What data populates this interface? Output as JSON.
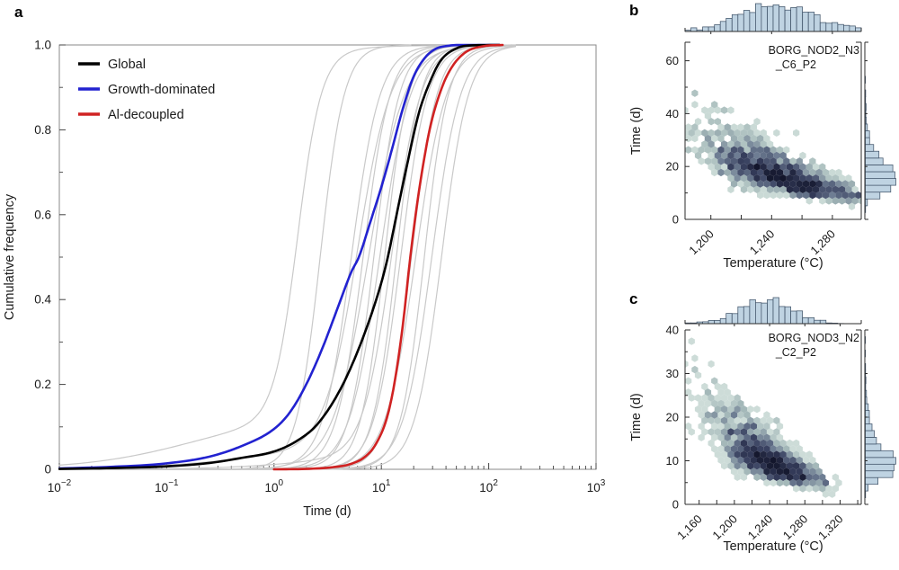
{
  "figure": {
    "letters": [
      "a",
      "b",
      "c"
    ],
    "background": "#ffffff"
  },
  "chart_data": [
    {
      "panel": "a",
      "type": "line",
      "xlabel": "Time (d)",
      "ylabel": "Cumulative frequency",
      "x_scale": "log10",
      "xlim_log10": [
        -2,
        3
      ],
      "ylim": [
        0,
        1
      ],
      "x_tick_exponents": [
        "−2",
        "−1",
        "0",
        "1",
        "2",
        "3"
      ],
      "y_ticks": [
        {
          "v": 0.0,
          "label": "0"
        },
        {
          "v": 0.2,
          "label": "0.2"
        },
        {
          "v": 0.4,
          "label": "0.4"
        },
        {
          "v": 0.6,
          "label": "0.6"
        },
        {
          "v": 0.8,
          "label": "0.8"
        },
        {
          "v": 1.0,
          "label": "1.0"
        }
      ],
      "legend": [
        {
          "label": "Global",
          "color": "#000000"
        },
        {
          "label": "Growth-dominated",
          "color": "#2222d0"
        },
        {
          "label": "Al-decoupled",
          "color": "#d02222"
        }
      ],
      "series": [
        {
          "name": "Growth-dominated",
          "color": "#2222d0",
          "width": 2.6,
          "points_log10_F": [
            [
              -2,
              0.002
            ],
            [
              -1.5,
              0.006
            ],
            [
              -1,
              0.014
            ],
            [
              -0.6,
              0.03
            ],
            [
              -0.3,
              0.055
            ],
            [
              0,
              0.095
            ],
            [
              0.15,
              0.135
            ],
            [
              0.3,
              0.2
            ],
            [
              0.45,
              0.285
            ],
            [
              0.6,
              0.385
            ],
            [
              0.72,
              0.465
            ],
            [
              0.79,
              0.5
            ],
            [
              0.9,
              0.585
            ],
            [
              1,
              0.665
            ],
            [
              1.1,
              0.755
            ],
            [
              1.2,
              0.85
            ],
            [
              1.3,
              0.925
            ],
            [
              1.4,
              0.968
            ],
            [
              1.5,
              0.99
            ],
            [
              1.62,
              0.998
            ],
            [
              1.75,
              1
            ],
            [
              2.1,
              1
            ]
          ]
        },
        {
          "name": "Global",
          "color": "#000000",
          "width": 2.6,
          "points_log10_F": [
            [
              -2,
              0.001
            ],
            [
              -1.5,
              0.003
            ],
            [
              -1,
              0.007
            ],
            [
              -0.6,
              0.015
            ],
            [
              -0.3,
              0.027
            ],
            [
              0,
              0.042
            ],
            [
              0.2,
              0.065
            ],
            [
              0.4,
              0.105
            ],
            [
              0.6,
              0.18
            ],
            [
              0.75,
              0.26
            ],
            [
              0.9,
              0.36
            ],
            [
              1,
              0.44
            ],
            [
              1.06,
              0.5
            ],
            [
              1.15,
              0.61
            ],
            [
              1.25,
              0.73
            ],
            [
              1.35,
              0.84
            ],
            [
              1.44,
              0.905
            ],
            [
              1.55,
              0.962
            ],
            [
              1.7,
              0.992
            ],
            [
              1.85,
              0.999
            ],
            [
              2.1,
              1
            ]
          ]
        },
        {
          "name": "Al-decoupled",
          "color": "#d02222",
          "width": 2.6,
          "points_log10_F": [
            [
              0,
              0
            ],
            [
              0.3,
              0.001
            ],
            [
              0.55,
              0.005
            ],
            [
              0.72,
              0.013
            ],
            [
              0.85,
              0.03
            ],
            [
              0.95,
              0.06
            ],
            [
              1.05,
              0.12
            ],
            [
              1.12,
              0.2
            ],
            [
              1.2,
              0.34
            ],
            [
              1.27,
              0.5
            ],
            [
              1.35,
              0.655
            ],
            [
              1.45,
              0.8
            ],
            [
              1.55,
              0.89
            ],
            [
              1.65,
              0.945
            ],
            [
              1.78,
              0.982
            ],
            [
              1.95,
              0.997
            ],
            [
              2.13,
              1
            ]
          ]
        }
      ],
      "background_curves": {
        "color": "#c9c9c9",
        "width": 1.2,
        "logistic_params": [
          {
            "mu": 0.22,
            "k": 9.0,
            "tail_w": 0.13,
            "tail_mu": -0.75,
            "tail_k": 2.0
          },
          {
            "mu": 0.43,
            "k": 9.0,
            "tail_w": 0.0,
            "tail_mu": 0,
            "tail_k": 1
          },
          {
            "mu": 0.72,
            "k": 7.5,
            "tail_w": 0.0,
            "tail_mu": 0,
            "tail_k": 1
          },
          {
            "mu": 0.78,
            "k": 6.5,
            "tail_w": 0.05,
            "tail_mu": -0.3,
            "tail_k": 2.0
          },
          {
            "mu": 0.83,
            "k": 8.0,
            "tail_w": 0.0,
            "tail_mu": 0,
            "tail_k": 1
          },
          {
            "mu": 0.88,
            "k": 6.0,
            "tail_w": 0.0,
            "tail_mu": 0,
            "tail_k": 1
          },
          {
            "mu": 0.93,
            "k": 8.5,
            "tail_w": 0.0,
            "tail_mu": 0,
            "tail_k": 1
          },
          {
            "mu": 0.985,
            "k": 7.0,
            "tail_w": 0.0,
            "tail_mu": 0,
            "tail_k": 1
          },
          {
            "mu": 1.03,
            "k": 9.0,
            "tail_w": 0.0,
            "tail_mu": 0,
            "tail_k": 1
          },
          {
            "mu": 1.1,
            "k": 7.5,
            "tail_w": 0.03,
            "tail_mu": 0.2,
            "tail_k": 2.5
          },
          {
            "mu": 1.14,
            "k": 9.0,
            "tail_w": 0.0,
            "tail_mu": 0,
            "tail_k": 1
          },
          {
            "mu": 1.18,
            "k": 8.0,
            "tail_w": 0.0,
            "tail_mu": 0,
            "tail_k": 1
          },
          {
            "mu": 1.28,
            "k": 8.5,
            "tail_w": 0.0,
            "tail_mu": 0,
            "tail_k": 1
          },
          {
            "mu": 1.32,
            "k": 7.0,
            "tail_w": 0.0,
            "tail_mu": 0,
            "tail_k": 1
          },
          {
            "mu": 1.4,
            "k": 9.0,
            "tail_w": 0.0,
            "tail_mu": 0,
            "tail_k": 1
          },
          {
            "mu": 1.47,
            "k": 7.5,
            "tail_w": 0.0,
            "tail_mu": 0,
            "tail_k": 1
          },
          {
            "mu": 1.56,
            "k": 8.0,
            "tail_w": 0.0,
            "tail_mu": 0,
            "tail_k": 1
          }
        ]
      },
      "style": {
        "spine_color": "#8a8a8a",
        "tick_color": "#444444"
      }
    },
    {
      "panel": "b",
      "type": "hexbin_with_marginals",
      "sample_label_lines": [
        "BORG_NOD2_N3",
        "_C6_P2"
      ],
      "xlabel": "Temperature (°C)",
      "ylabel": "Time (d)",
      "xlim": [
        1183,
        1299
      ],
      "ylim": [
        0,
        67
      ],
      "x_major_ticks": [
        {
          "v": 1200,
          "label": "1,200"
        },
        {
          "v": 1240,
          "label": "1,240"
        },
        {
          "v": 1280,
          "label": "1,280"
        }
      ],
      "x_minor_step": 20,
      "y_major_ticks": [
        {
          "v": 0,
          "label": "0"
        },
        {
          "v": 20,
          "label": "20"
        },
        {
          "v": 40,
          "label": "40"
        },
        {
          "v": 60,
          "label": "60"
        }
      ],
      "y_minor_step": 10,
      "distribution": {
        "n": 1400,
        "temp_mean": 1243,
        "temp_sd": 25,
        "log_time_mean": 2.84,
        "log_time_sd": 0.37,
        "rho": -0.8,
        "seed": 42
      },
      "style": {
        "spine_color": "#2b2b2b",
        "hist_fill": "#bfd3e2",
        "hist_stroke": "#43566b",
        "hex_colormap": [
          "#eaf2ef",
          "#cddcd8",
          "#a3b7b8",
          "#6d7c92",
          "#38405f",
          "#13162c"
        ]
      }
    },
    {
      "panel": "c",
      "type": "hexbin_with_marginals",
      "sample_label_lines": [
        "BORG_NOD3_N2",
        "_C2_P2"
      ],
      "xlabel": "Temperature (°C)",
      "ylabel": "Time (d)",
      "xlim": [
        1144,
        1344
      ],
      "ylim": [
        0,
        40
      ],
      "x_major_ticks": [
        {
          "v": 1160,
          "label": "1,160"
        },
        {
          "v": 1200,
          "label": "1,200"
        },
        {
          "v": 1240,
          "label": "1,240"
        },
        {
          "v": 1280,
          "label": "1,280"
        },
        {
          "v": 1320,
          "label": "1,320"
        }
      ],
      "x_minor_step": 20,
      "y_major_ticks": [
        {
          "v": 0,
          "label": "0"
        },
        {
          "v": 10,
          "label": "10"
        },
        {
          "v": 20,
          "label": "20"
        },
        {
          "v": 30,
          "label": "30"
        },
        {
          "v": 40,
          "label": "40"
        }
      ],
      "y_minor_step": 5,
      "distribution": {
        "n": 1400,
        "temp_mean": 1236,
        "temp_sd": 30,
        "log_time_mean": 2.34,
        "log_time_sd": 0.4,
        "rho": -0.78,
        "seed": 1234
      },
      "style": {
        "spine_color": "#2b2b2b",
        "hist_fill": "#bfd3e2",
        "hist_stroke": "#43566b",
        "hex_colormap": [
          "#eaf2ef",
          "#cddcd8",
          "#a3b7b8",
          "#6d7c92",
          "#38405f",
          "#13162c"
        ]
      }
    }
  ]
}
